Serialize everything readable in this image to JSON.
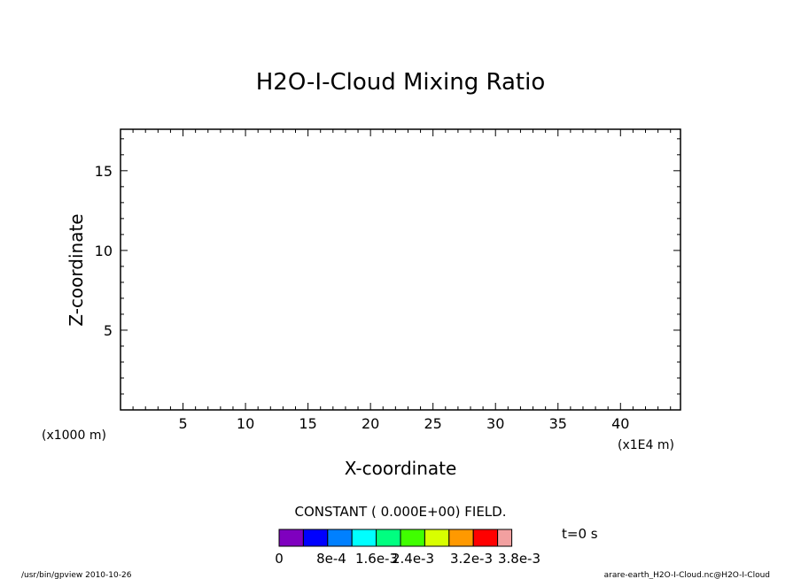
{
  "chart_data": {
    "type": "heatmap",
    "title": "H2O-I-Cloud Mixing Ratio",
    "xlabel": "X-coordinate",
    "ylabel": "Z-coordinate",
    "x_unit": "(x1000 m)",
    "x_scale_note": "(x1E4 m)",
    "xlim": [
      0,
      44.8
    ],
    "ylim": [
      0,
      17.6
    ],
    "x_ticks": [
      5,
      10,
      15,
      20,
      25,
      30,
      35,
      40
    ],
    "y_ticks": [
      5,
      10,
      15
    ],
    "grid": false,
    "field_note": "CONSTANT ( 0.000E+00) FIELD.",
    "time_label": "t=0 s",
    "colorbar": {
      "colors": [
        "#7f00bf",
        "#0000ff",
        "#0080ff",
        "#00ffff",
        "#00ff80",
        "#40ff00",
        "#d8ff00",
        "#ff9900",
        "#ff0000",
        "#f2a0a0"
      ],
      "labels": [
        "0",
        "8e-4",
        "1.6e-3",
        "2.4e-3",
        "3.2e-3",
        "3.8e-3"
      ]
    }
  },
  "footer": {
    "left": "/usr/bin/gpview  2010-10-26",
    "right": "arare-earth_H2O-I-Cloud.nc@H2O-I-Cloud"
  }
}
